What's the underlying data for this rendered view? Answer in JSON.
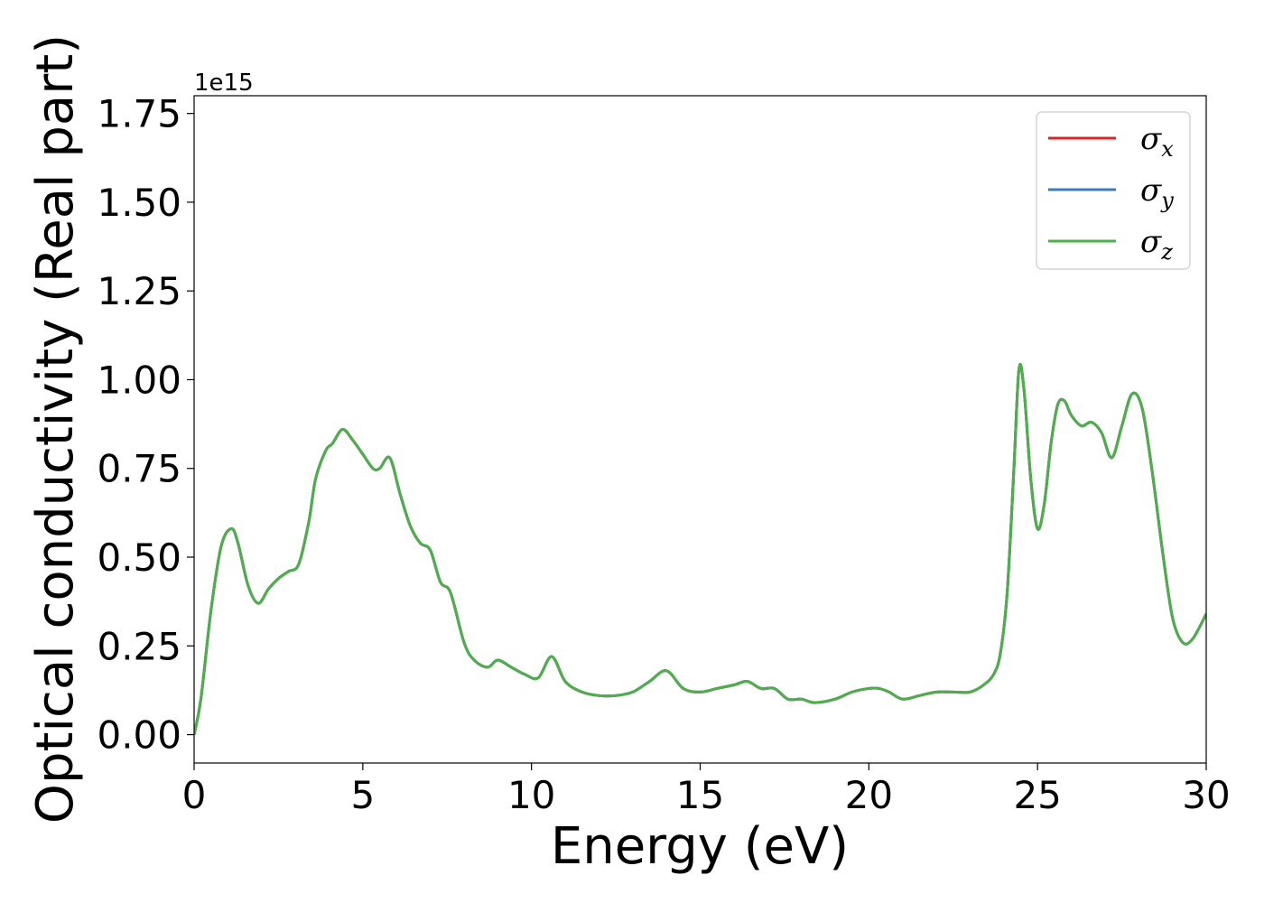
{
  "chart_data": {
    "type": "line",
    "title": "",
    "xlabel": "Energy (eV)",
    "ylabel": "Optical conductivity (Real part)",
    "y_offset_label": "1e15",
    "xlim": [
      0,
      30
    ],
    "ylim": [
      -0.08,
      1.8
    ],
    "xticks": [
      0,
      5,
      10,
      15,
      20,
      25,
      30
    ],
    "xtick_labels": [
      "0",
      "5",
      "10",
      "15",
      "20",
      "25",
      "30"
    ],
    "yticks": [
      0.0,
      0.25,
      0.5,
      0.75,
      1.0,
      1.25,
      1.5,
      1.75
    ],
    "ytick_labels": [
      "0.00",
      "0.25",
      "0.50",
      "0.75",
      "1.00",
      "1.25",
      "1.50",
      "1.75"
    ],
    "grid": false,
    "legend_position": "top-right",
    "x": [
      0,
      0.2,
      0.5,
      0.8,
      1.1,
      1.3,
      1.6,
      1.9,
      2.2,
      2.5,
      2.8,
      3.1,
      3.4,
      3.6,
      3.9,
      4.1,
      4.4,
      4.7,
      5.0,
      5.3,
      5.5,
      5.8,
      6.1,
      6.4,
      6.7,
      7.0,
      7.3,
      7.6,
      8.0,
      8.3,
      8.7,
      9.0,
      9.4,
      9.8,
      10.2,
      10.6,
      11.0,
      11.5,
      12.0,
      12.5,
      13.0,
      13.5,
      14.0,
      14.5,
      15.0,
      15.5,
      16.0,
      16.4,
      16.8,
      17.2,
      17.6,
      18.0,
      18.4,
      19.0,
      19.5,
      20.0,
      20.3,
      20.6,
      21.0,
      21.5,
      22.0,
      22.5,
      23.0,
      23.4,
      23.7,
      23.9,
      24.1,
      24.3,
      24.45,
      24.6,
      24.8,
      25.0,
      25.2,
      25.4,
      25.6,
      25.8,
      26.0,
      26.3,
      26.6,
      26.9,
      27.2,
      27.5,
      27.8,
      28.1,
      28.4,
      28.7,
      29.0,
      29.3,
      29.6,
      30.0
    ],
    "series": [
      {
        "name": "σx",
        "name_base": "σ",
        "name_sub": "x",
        "color": "#d62728",
        "values": [
          0.0,
          0.1,
          0.35,
          0.53,
          0.58,
          0.54,
          0.42,
          0.37,
          0.41,
          0.44,
          0.46,
          0.48,
          0.6,
          0.72,
          0.8,
          0.82,
          0.86,
          0.83,
          0.79,
          0.75,
          0.75,
          0.78,
          0.68,
          0.59,
          0.54,
          0.52,
          0.43,
          0.4,
          0.26,
          0.21,
          0.19,
          0.21,
          0.19,
          0.17,
          0.16,
          0.22,
          0.15,
          0.12,
          0.11,
          0.11,
          0.12,
          0.15,
          0.18,
          0.13,
          0.12,
          0.13,
          0.14,
          0.15,
          0.13,
          0.13,
          0.1,
          0.1,
          0.09,
          0.1,
          0.12,
          0.13,
          0.13,
          0.12,
          0.1,
          0.11,
          0.12,
          0.12,
          0.12,
          0.14,
          0.17,
          0.23,
          0.4,
          0.75,
          1.03,
          0.97,
          0.72,
          0.58,
          0.65,
          0.82,
          0.93,
          0.94,
          0.9,
          0.87,
          0.88,
          0.85,
          0.78,
          0.87,
          0.96,
          0.92,
          0.74,
          0.52,
          0.33,
          0.26,
          0.27,
          0.34
        ]
      },
      {
        "name": "σy",
        "name_base": "σ",
        "name_sub": "y",
        "color": "#3a7dbf",
        "values": [
          0.0,
          0.1,
          0.35,
          0.53,
          0.58,
          0.54,
          0.42,
          0.37,
          0.41,
          0.44,
          0.46,
          0.48,
          0.6,
          0.72,
          0.8,
          0.82,
          0.86,
          0.83,
          0.79,
          0.75,
          0.75,
          0.78,
          0.68,
          0.59,
          0.54,
          0.52,
          0.43,
          0.4,
          0.26,
          0.21,
          0.19,
          0.21,
          0.19,
          0.17,
          0.16,
          0.22,
          0.15,
          0.12,
          0.11,
          0.11,
          0.12,
          0.15,
          0.18,
          0.13,
          0.12,
          0.13,
          0.14,
          0.15,
          0.13,
          0.13,
          0.1,
          0.1,
          0.09,
          0.1,
          0.12,
          0.13,
          0.13,
          0.12,
          0.1,
          0.11,
          0.12,
          0.12,
          0.12,
          0.14,
          0.17,
          0.23,
          0.4,
          0.75,
          1.03,
          0.97,
          0.72,
          0.58,
          0.65,
          0.82,
          0.93,
          0.94,
          0.9,
          0.87,
          0.88,
          0.85,
          0.78,
          0.87,
          0.96,
          0.92,
          0.74,
          0.52,
          0.33,
          0.26,
          0.27,
          0.34
        ]
      },
      {
        "name": "σz",
        "name_base": "σ",
        "name_sub": "z",
        "color": "#4daf4a",
        "values": [
          0.0,
          0.1,
          0.35,
          0.53,
          0.58,
          0.54,
          0.42,
          0.37,
          0.41,
          0.44,
          0.46,
          0.48,
          0.6,
          0.72,
          0.8,
          0.82,
          0.86,
          0.83,
          0.79,
          0.75,
          0.75,
          0.78,
          0.68,
          0.59,
          0.54,
          0.52,
          0.43,
          0.4,
          0.26,
          0.21,
          0.19,
          0.21,
          0.19,
          0.17,
          0.16,
          0.22,
          0.15,
          0.12,
          0.11,
          0.11,
          0.12,
          0.15,
          0.18,
          0.13,
          0.12,
          0.13,
          0.14,
          0.15,
          0.13,
          0.13,
          0.1,
          0.1,
          0.09,
          0.1,
          0.12,
          0.13,
          0.13,
          0.12,
          0.1,
          0.11,
          0.12,
          0.12,
          0.12,
          0.14,
          0.17,
          0.23,
          0.4,
          0.75,
          1.03,
          0.97,
          0.72,
          0.58,
          0.65,
          0.82,
          0.93,
          0.94,
          0.9,
          0.87,
          0.88,
          0.85,
          0.78,
          0.87,
          0.96,
          0.92,
          0.74,
          0.52,
          0.33,
          0.26,
          0.27,
          0.34
        ]
      }
    ]
  }
}
